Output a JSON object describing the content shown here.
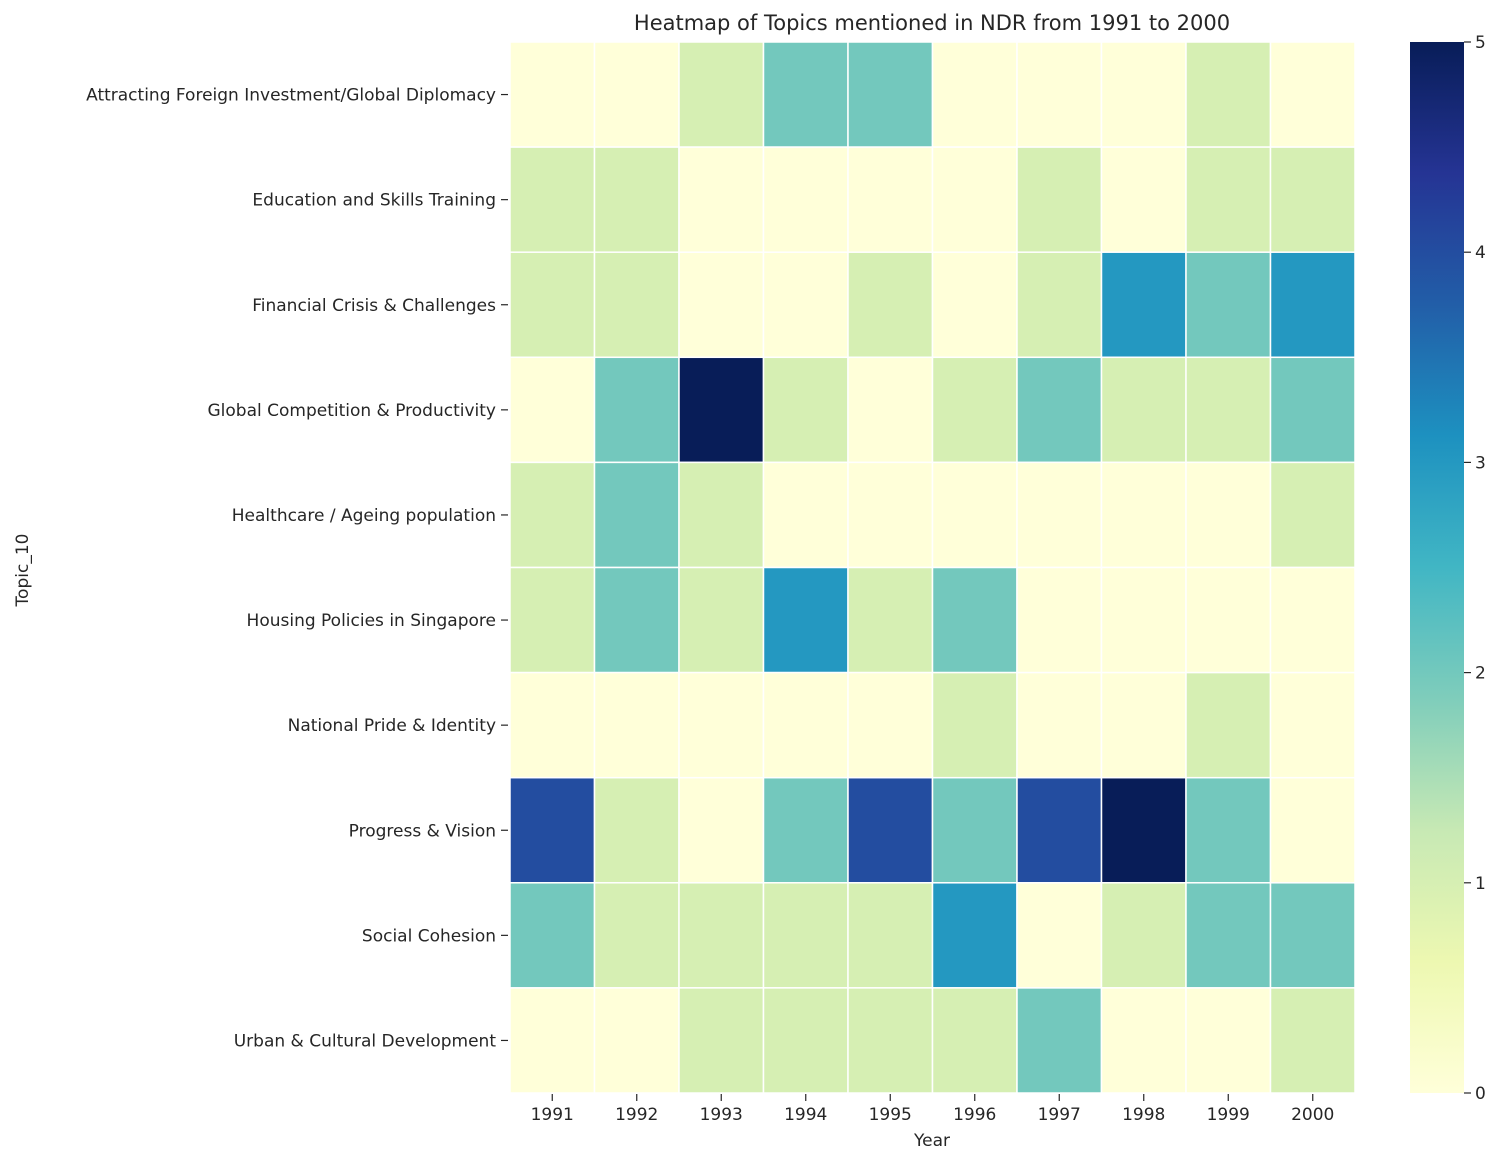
{
  "chart_data": {
    "type": "heatmap",
    "title": "Heatmap of Topics mentioned in NDR from 1991 to 2000",
    "xlabel": "Year",
    "ylabel": "Topic_10",
    "x": [
      "1991",
      "1992",
      "1993",
      "1994",
      "1995",
      "1996",
      "1997",
      "1998",
      "1999",
      "2000"
    ],
    "y": [
      "Attracting Foreign Investment/Global Diplomacy",
      "Education and Skills Training",
      "Financial Crisis & Challenges",
      "Global Competition & Productivity",
      "Healthcare / Ageing population",
      "Housing Policies in Singapore",
      "National Pride & Identity",
      "Progress & Vision",
      "Social Cohesion",
      "Urban & Cultural Development"
    ],
    "values": [
      [
        0,
        0,
        1,
        2,
        2,
        0,
        0,
        0,
        1,
        0
      ],
      [
        1,
        1,
        0,
        0,
        0,
        0,
        1,
        0,
        1,
        1
      ],
      [
        1,
        1,
        0,
        0,
        1,
        0,
        1,
        3,
        2,
        3
      ],
      [
        0,
        2,
        5,
        1,
        0,
        1,
        2,
        1,
        1,
        2
      ],
      [
        1,
        2,
        1,
        0,
        0,
        0,
        0,
        0,
        0,
        1
      ],
      [
        1,
        2,
        1,
        3,
        1,
        2,
        0,
        0,
        0,
        0
      ],
      [
        0,
        0,
        0,
        0,
        0,
        1,
        0,
        0,
        1,
        0
      ],
      [
        4,
        1,
        0,
        2,
        4,
        2,
        4,
        5,
        2,
        0
      ],
      [
        2,
        1,
        1,
        1,
        1,
        3,
        0,
        1,
        2,
        2
      ],
      [
        0,
        0,
        1,
        1,
        1,
        1,
        2,
        0,
        0,
        1
      ]
    ],
    "colorbar": {
      "min": 0,
      "max": 5,
      "ticks": [
        0,
        1,
        2,
        3,
        4,
        5
      ]
    },
    "colormap": [
      "#ffffd9",
      "#edf8b1",
      "#c7e9b4",
      "#7fcdbb",
      "#41b6c4",
      "#1d91c0",
      "#225ea8",
      "#253494",
      "#081d58"
    ]
  }
}
